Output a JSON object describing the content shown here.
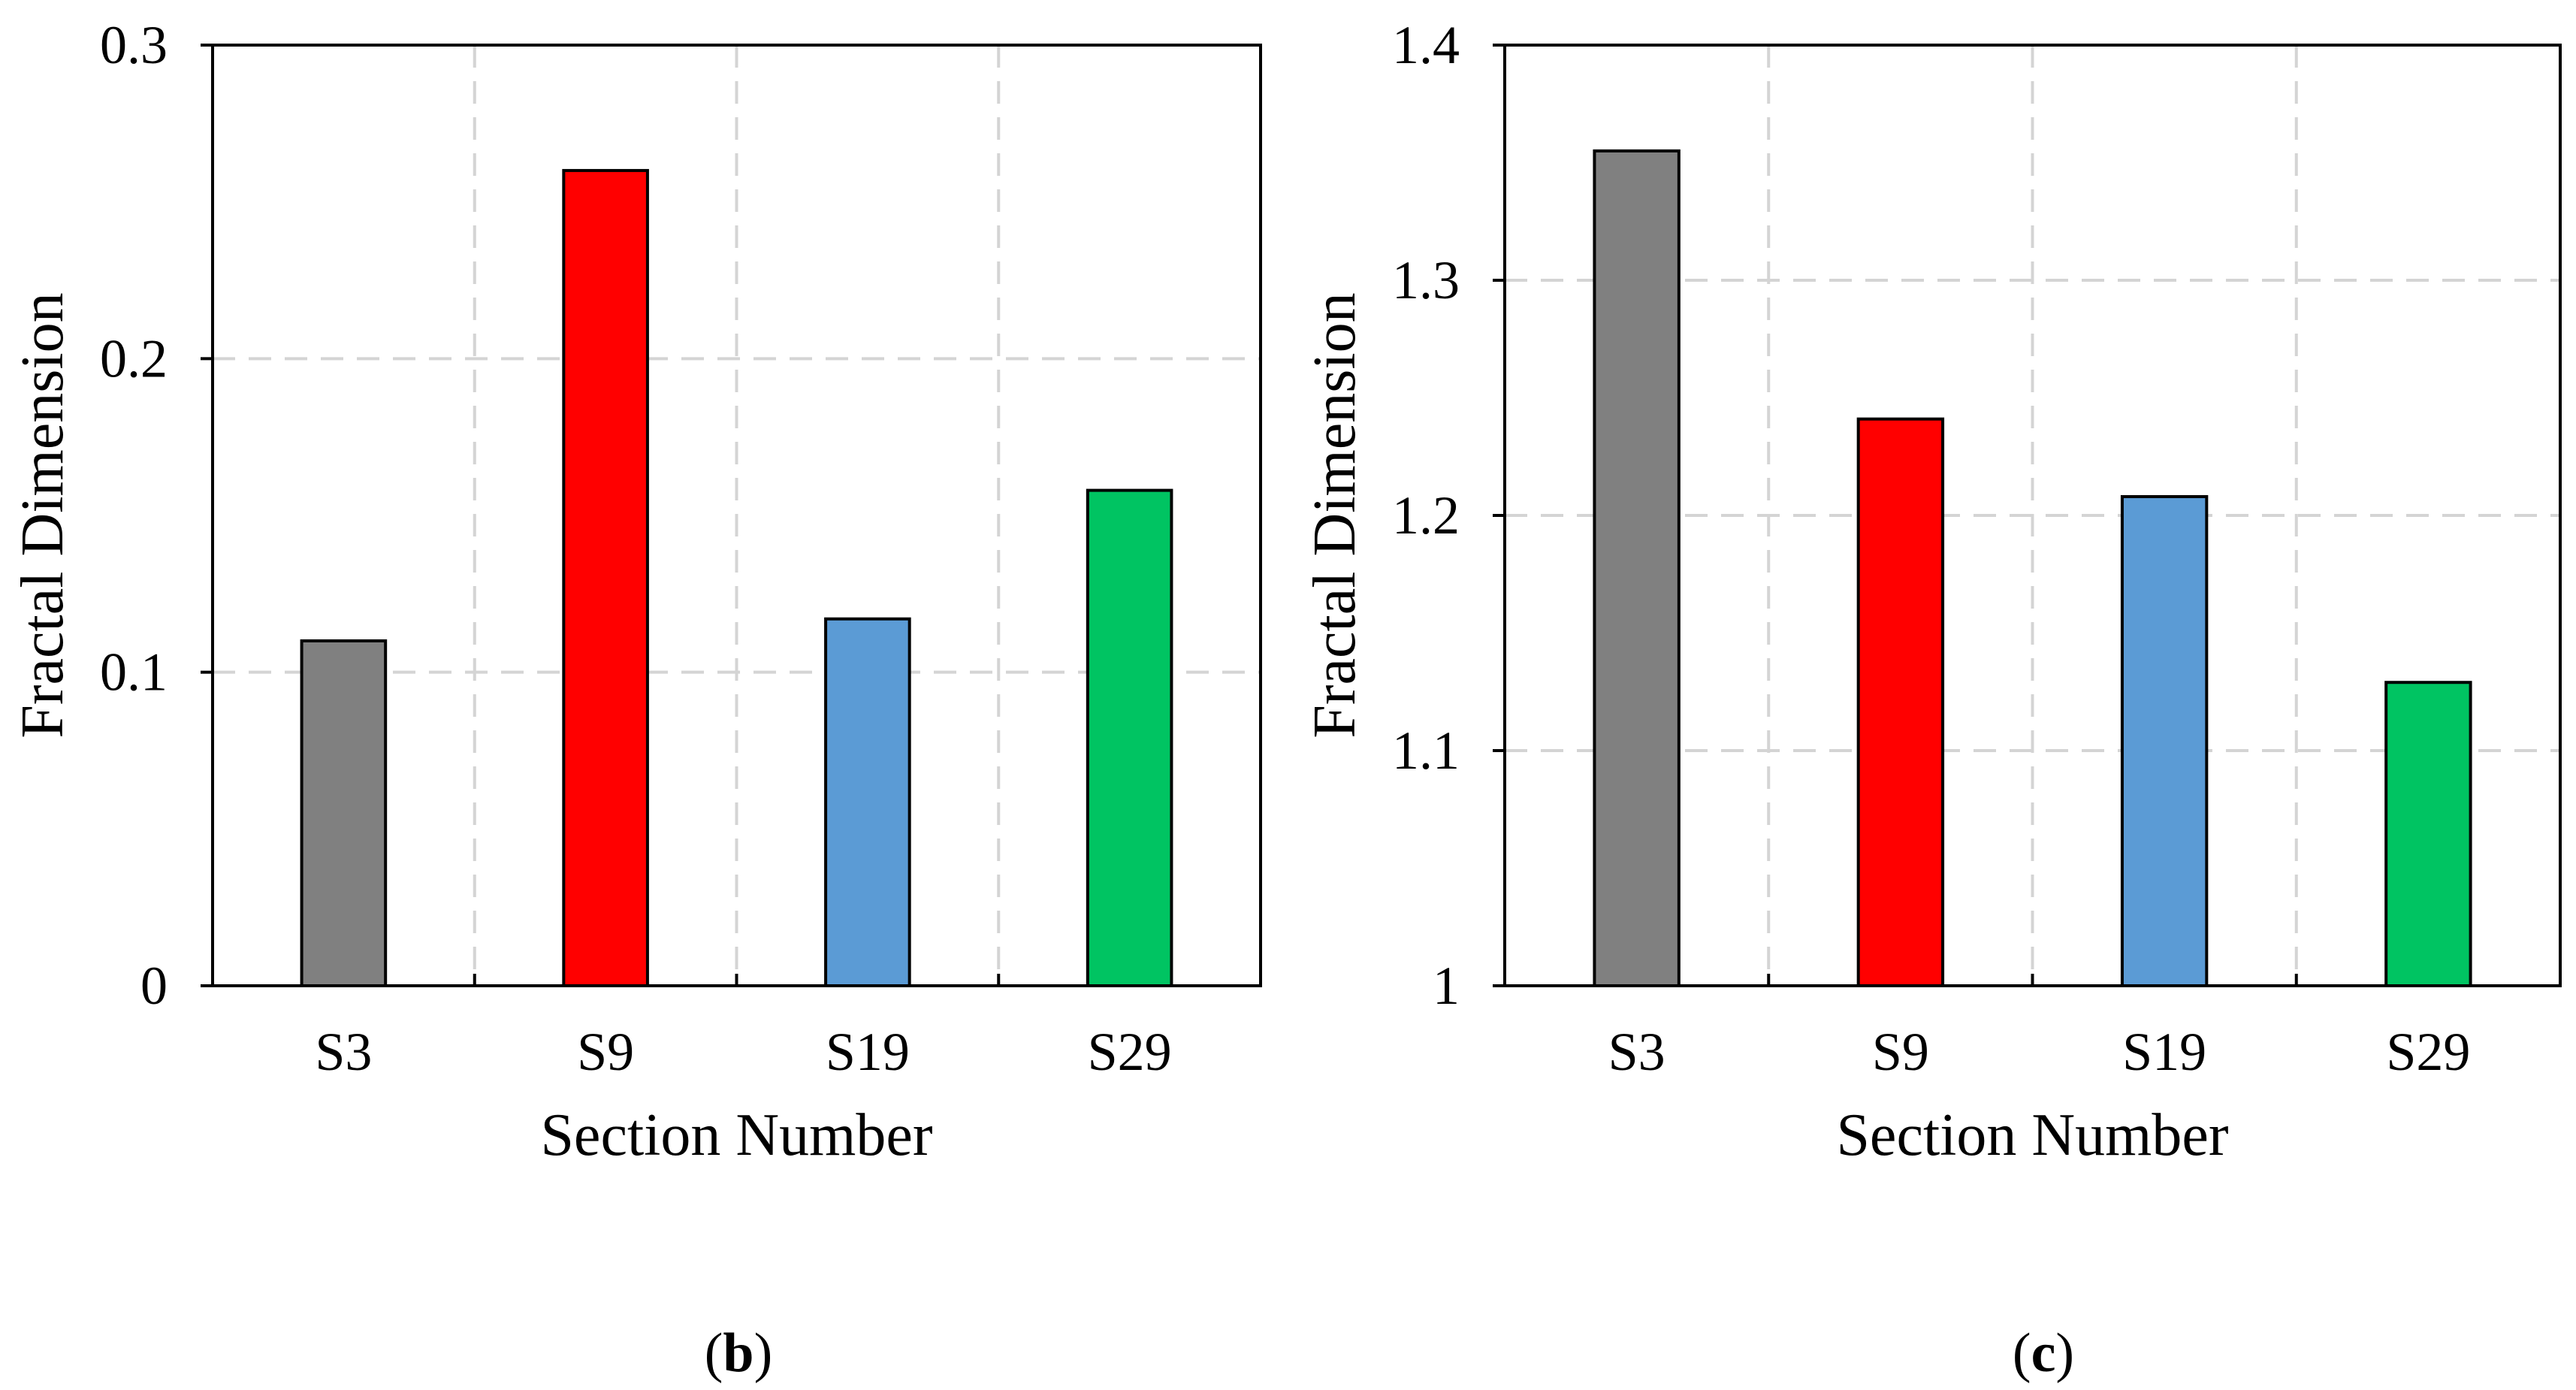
{
  "chart_data": [
    {
      "type": "bar",
      "panel_label": "b",
      "categories": [
        "S3",
        "S9",
        "S19",
        "S29"
      ],
      "values": [
        0.11,
        0.26,
        0.117,
        0.158
      ],
      "colors": [
        "#808080",
        "#ff0000",
        "#5b9bd5",
        "#00c462"
      ],
      "xlabel": "Section Number",
      "ylabel": "Fractal Dimension",
      "ylim": [
        0,
        0.3
      ],
      "yticks": [
        "0",
        "0.1",
        "0.2",
        "0.3"
      ],
      "grid": true
    },
    {
      "type": "bar",
      "panel_label": "c",
      "categories": [
        "S3",
        "S9",
        "S19",
        "S29"
      ],
      "values": [
        1.355,
        1.241,
        1.208,
        1.129
      ],
      "colors": [
        "#808080",
        "#ff0000",
        "#5b9bd5",
        "#00c462"
      ],
      "xlabel": "Section Number",
      "ylabel": "Fractal Dimension",
      "ylim": [
        1,
        1.4
      ],
      "yticks": [
        "1",
        "1.1",
        "1.2",
        "1.3",
        "1.4"
      ],
      "grid": true
    }
  ]
}
